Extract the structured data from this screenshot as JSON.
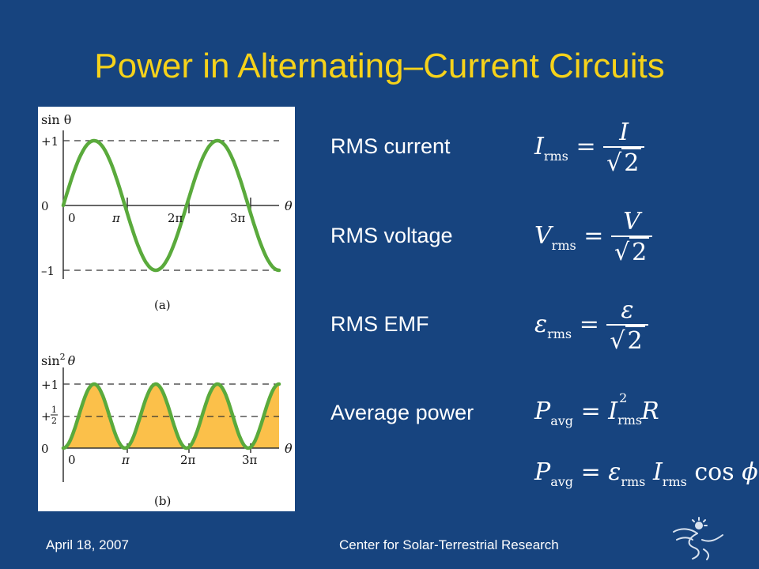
{
  "slide": {
    "title": "Power in Alternating–Current Circuits",
    "labels": {
      "rms_current": "RMS current",
      "rms_voltage": "RMS voltage",
      "rms_emf": "RMS EMF",
      "average_power": "Average power"
    },
    "equations": {
      "current": {
        "lhs": "I",
        "sub": "rms",
        "num": "I",
        "den": "2"
      },
      "voltage": {
        "lhs": "V",
        "sub": "rms",
        "num": "V",
        "den": "2"
      },
      "emf": {
        "lhs": "ε",
        "sub": "rms",
        "num": "ε",
        "den": "2"
      },
      "power1": {
        "lhs": "P",
        "lhs_sub": "avg",
        "i": "I",
        "i_sup": "2",
        "i_sub": "rms",
        "r": "R"
      },
      "power2": {
        "lhs": "P",
        "lhs_sub": "avg",
        "e": "ε",
        "e_sub": "rms",
        "i": "I",
        "i_sub": "rms",
        "cos": "cos",
        "phi": "ϕ"
      }
    },
    "footer": {
      "date": "April 18, 2007",
      "org": "Center for Solar-Terrestrial Research"
    }
  },
  "figure": {
    "panel_a": {
      "ylabel": "sin θ",
      "xlabel": "θ",
      "yticks": [
        "+1",
        "0",
        "–1"
      ],
      "xticks": [
        "0",
        "π",
        "2π",
        "3π"
      ],
      "caption": "(a)"
    },
    "panel_b": {
      "ylabel_base": "sin",
      "ylabel_sup": "2",
      "ylabel_var": "θ",
      "xlabel": "θ",
      "yticks": [
        "+1",
        "+",
        "1",
        "2",
        "0"
      ],
      "xticks": [
        "0",
        "π",
        "2π",
        "3π"
      ],
      "caption": "(b)"
    }
  },
  "colors": {
    "background": "#17447f",
    "title": "#f6d21a",
    "curve": "#5aaa3c",
    "fill": "#fbc04a"
  }
}
